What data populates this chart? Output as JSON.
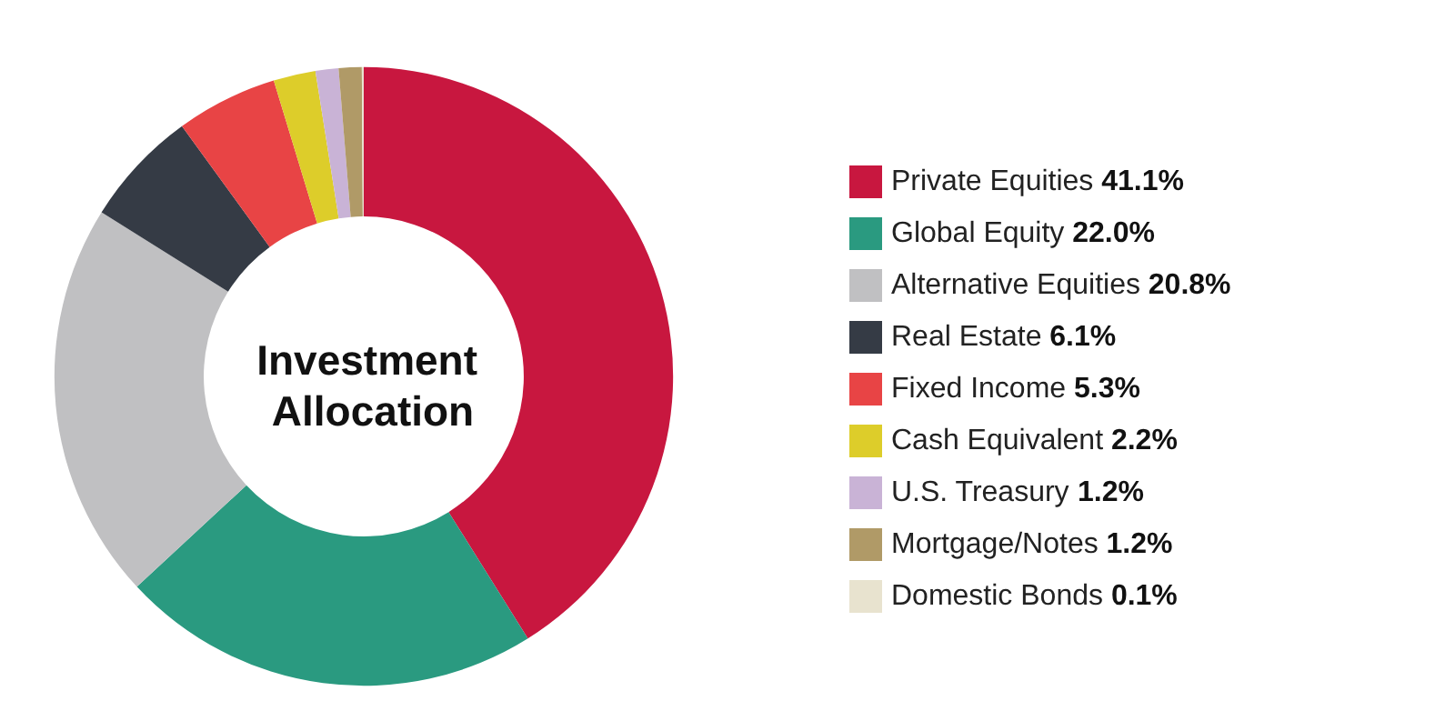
{
  "chart_data": {
    "type": "donut",
    "title": "Investment Allocation",
    "categories": [
      "Private Equities",
      "Global Equity",
      "Alternative Equities",
      "Real Estate",
      "Fixed Income",
      "Cash Equivalent",
      "U.S. Treasury",
      "Mortgage/Notes",
      "Domestic Bonds"
    ],
    "values": [
      41.1,
      22.0,
      20.8,
      6.1,
      5.3,
      2.2,
      1.2,
      1.2,
      0.1
    ],
    "value_labels": [
      "41.1%",
      "22.0%",
      "20.8%",
      "6.1%",
      "5.3%",
      "2.2%",
      "1.2%",
      "1.2%",
      "0.1%"
    ],
    "colors": [
      "#c8173f",
      "#2a9a80",
      "#c0c0c2",
      "#353b45",
      "#e84445",
      "#ddcd2a",
      "#c9b3d6",
      "#b09a67",
      "#e8e3cf"
    ],
    "legend": "right"
  }
}
